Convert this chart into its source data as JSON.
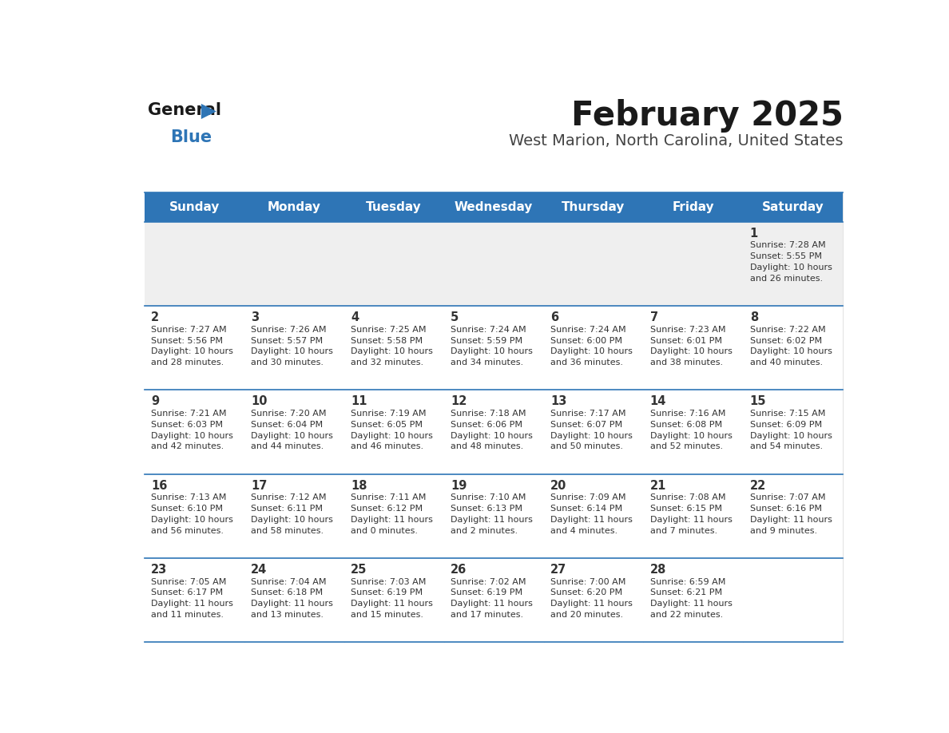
{
  "title": "February 2025",
  "subtitle": "West Marion, North Carolina, United States",
  "days_of_week": [
    "Sunday",
    "Monday",
    "Tuesday",
    "Wednesday",
    "Thursday",
    "Friday",
    "Saturday"
  ],
  "header_bg": "#2E75B6",
  "header_text": "#FFFFFF",
  "cell_bg_white": "#FFFFFF",
  "cell_bg_gray": "#EFEFEF",
  "day_number_color": "#333333",
  "text_color": "#333333",
  "border_color": "#2E75B6",
  "title_color": "#1a1a1a",
  "subtitle_color": "#444444",
  "logo_general_color": "#1a1a1a",
  "logo_blue_color": "#2E75B6",
  "calendar_data": [
    [
      null,
      null,
      null,
      null,
      null,
      null,
      {
        "day": 1,
        "sunrise": "7:28 AM",
        "sunset": "5:55 PM",
        "daylight": "10 hours",
        "daylight2": "and 26 minutes."
      }
    ],
    [
      {
        "day": 2,
        "sunrise": "7:27 AM",
        "sunset": "5:56 PM",
        "daylight": "10 hours",
        "daylight2": "and 28 minutes."
      },
      {
        "day": 3,
        "sunrise": "7:26 AM",
        "sunset": "5:57 PM",
        "daylight": "10 hours",
        "daylight2": "and 30 minutes."
      },
      {
        "day": 4,
        "sunrise": "7:25 AM",
        "sunset": "5:58 PM",
        "daylight": "10 hours",
        "daylight2": "and 32 minutes."
      },
      {
        "day": 5,
        "sunrise": "7:24 AM",
        "sunset": "5:59 PM",
        "daylight": "10 hours",
        "daylight2": "and 34 minutes."
      },
      {
        "day": 6,
        "sunrise": "7:24 AM",
        "sunset": "6:00 PM",
        "daylight": "10 hours",
        "daylight2": "and 36 minutes."
      },
      {
        "day": 7,
        "sunrise": "7:23 AM",
        "sunset": "6:01 PM",
        "daylight": "10 hours",
        "daylight2": "and 38 minutes."
      },
      {
        "day": 8,
        "sunrise": "7:22 AM",
        "sunset": "6:02 PM",
        "daylight": "10 hours",
        "daylight2": "and 40 minutes."
      }
    ],
    [
      {
        "day": 9,
        "sunrise": "7:21 AM",
        "sunset": "6:03 PM",
        "daylight": "10 hours",
        "daylight2": "and 42 minutes."
      },
      {
        "day": 10,
        "sunrise": "7:20 AM",
        "sunset": "6:04 PM",
        "daylight": "10 hours",
        "daylight2": "and 44 minutes."
      },
      {
        "day": 11,
        "sunrise": "7:19 AM",
        "sunset": "6:05 PM",
        "daylight": "10 hours",
        "daylight2": "and 46 minutes."
      },
      {
        "day": 12,
        "sunrise": "7:18 AM",
        "sunset": "6:06 PM",
        "daylight": "10 hours",
        "daylight2": "and 48 minutes."
      },
      {
        "day": 13,
        "sunrise": "7:17 AM",
        "sunset": "6:07 PM",
        "daylight": "10 hours",
        "daylight2": "and 50 minutes."
      },
      {
        "day": 14,
        "sunrise": "7:16 AM",
        "sunset": "6:08 PM",
        "daylight": "10 hours",
        "daylight2": "and 52 minutes."
      },
      {
        "day": 15,
        "sunrise": "7:15 AM",
        "sunset": "6:09 PM",
        "daylight": "10 hours",
        "daylight2": "and 54 minutes."
      }
    ],
    [
      {
        "day": 16,
        "sunrise": "7:13 AM",
        "sunset": "6:10 PM",
        "daylight": "10 hours",
        "daylight2": "and 56 minutes."
      },
      {
        "day": 17,
        "sunrise": "7:12 AM",
        "sunset": "6:11 PM",
        "daylight": "10 hours",
        "daylight2": "and 58 minutes."
      },
      {
        "day": 18,
        "sunrise": "7:11 AM",
        "sunset": "6:12 PM",
        "daylight": "11 hours",
        "daylight2": "and 0 minutes."
      },
      {
        "day": 19,
        "sunrise": "7:10 AM",
        "sunset": "6:13 PM",
        "daylight": "11 hours",
        "daylight2": "and 2 minutes."
      },
      {
        "day": 20,
        "sunrise": "7:09 AM",
        "sunset": "6:14 PM",
        "daylight": "11 hours",
        "daylight2": "and 4 minutes."
      },
      {
        "day": 21,
        "sunrise": "7:08 AM",
        "sunset": "6:15 PM",
        "daylight": "11 hours",
        "daylight2": "and 7 minutes."
      },
      {
        "day": 22,
        "sunrise": "7:07 AM",
        "sunset": "6:16 PM",
        "daylight": "11 hours",
        "daylight2": "and 9 minutes."
      }
    ],
    [
      {
        "day": 23,
        "sunrise": "7:05 AM",
        "sunset": "6:17 PM",
        "daylight": "11 hours",
        "daylight2": "and 11 minutes."
      },
      {
        "day": 24,
        "sunrise": "7:04 AM",
        "sunset": "6:18 PM",
        "daylight": "11 hours",
        "daylight2": "and 13 minutes."
      },
      {
        "day": 25,
        "sunrise": "7:03 AM",
        "sunset": "6:19 PM",
        "daylight": "11 hours",
        "daylight2": "and 15 minutes."
      },
      {
        "day": 26,
        "sunrise": "7:02 AM",
        "sunset": "6:19 PM",
        "daylight": "11 hours",
        "daylight2": "and 17 minutes."
      },
      {
        "day": 27,
        "sunrise": "7:00 AM",
        "sunset": "6:20 PM",
        "daylight": "11 hours",
        "daylight2": "and 20 minutes."
      },
      {
        "day": 28,
        "sunrise": "6:59 AM",
        "sunset": "6:21 PM",
        "daylight": "11 hours",
        "daylight2": "and 22 minutes."
      },
      null
    ]
  ]
}
